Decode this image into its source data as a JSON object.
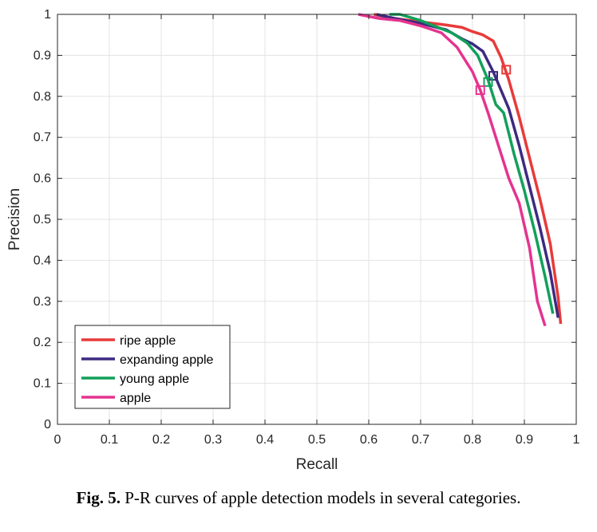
{
  "caption": {
    "label": "Fig. 5.",
    "text": "P-R curves of apple detection models in several categories."
  },
  "chart_data": {
    "type": "line",
    "xlabel": "Recall",
    "ylabel": "Precision",
    "xlim": [
      0,
      1
    ],
    "ylim": [
      0,
      1
    ],
    "xticks": [
      "0",
      "0.1",
      "0.2",
      "0.3",
      "0.4",
      "0.5",
      "0.6",
      "0.7",
      "0.8",
      "0.9",
      "1"
    ],
    "yticks": [
      "0",
      "0.1",
      "0.2",
      "0.3",
      "0.4",
      "0.5",
      "0.6",
      "0.7",
      "0.8",
      "0.9",
      "1"
    ],
    "grid": true,
    "legend_position": "bottom-left",
    "series": [
      {
        "name": "ripe apple",
        "color": "#e83a3a",
        "marker": [
          0.865,
          0.865
        ],
        "points": [
          [
            0.61,
            1.0
          ],
          [
            0.65,
            0.99
          ],
          [
            0.7,
            0.982
          ],
          [
            0.75,
            0.974
          ],
          [
            0.78,
            0.968
          ],
          [
            0.8,
            0.958
          ],
          [
            0.82,
            0.95
          ],
          [
            0.84,
            0.935
          ],
          [
            0.855,
            0.895
          ],
          [
            0.87,
            0.84
          ],
          [
            0.89,
            0.75
          ],
          [
            0.91,
            0.65
          ],
          [
            0.93,
            0.55
          ],
          [
            0.95,
            0.44
          ],
          [
            0.965,
            0.31
          ],
          [
            0.97,
            0.245
          ]
        ]
      },
      {
        "name": "expanding apple",
        "color": "#3d2a80",
        "marker": [
          0.84,
          0.85
        ],
        "points": [
          [
            0.615,
            1.0
          ],
          [
            0.65,
            0.99
          ],
          [
            0.7,
            0.978
          ],
          [
            0.75,
            0.962
          ],
          [
            0.78,
            0.94
          ],
          [
            0.8,
            0.928
          ],
          [
            0.82,
            0.91
          ],
          [
            0.84,
            0.86
          ],
          [
            0.87,
            0.77
          ],
          [
            0.89,
            0.68
          ],
          [
            0.91,
            0.58
          ],
          [
            0.93,
            0.48
          ],
          [
            0.95,
            0.37
          ],
          [
            0.965,
            0.26
          ]
        ]
      },
      {
        "name": "young apple",
        "color": "#12a05a",
        "marker": [
          0.83,
          0.835
        ],
        "points": [
          [
            0.64,
            1.0
          ],
          [
            0.66,
            1.0
          ],
          [
            0.7,
            0.985
          ],
          [
            0.73,
            0.97
          ],
          [
            0.76,
            0.955
          ],
          [
            0.79,
            0.93
          ],
          [
            0.81,
            0.9
          ],
          [
            0.83,
            0.84
          ],
          [
            0.845,
            0.78
          ],
          [
            0.86,
            0.76
          ],
          [
            0.88,
            0.66
          ],
          [
            0.9,
            0.57
          ],
          [
            0.92,
            0.47
          ],
          [
            0.94,
            0.36
          ],
          [
            0.955,
            0.27
          ]
        ]
      },
      {
        "name": "apple",
        "color": "#e5338f",
        "marker": [
          0.815,
          0.815
        ],
        "points": [
          [
            0.58,
            1.0
          ],
          [
            0.62,
            0.99
          ],
          [
            0.66,
            0.985
          ],
          [
            0.7,
            0.972
          ],
          [
            0.74,
            0.955
          ],
          [
            0.77,
            0.92
          ],
          [
            0.8,
            0.86
          ],
          [
            0.815,
            0.815
          ],
          [
            0.83,
            0.76
          ],
          [
            0.85,
            0.68
          ],
          [
            0.87,
            0.6
          ],
          [
            0.89,
            0.54
          ],
          [
            0.91,
            0.43
          ],
          [
            0.925,
            0.3
          ],
          [
            0.94,
            0.24
          ]
        ]
      }
    ]
  }
}
